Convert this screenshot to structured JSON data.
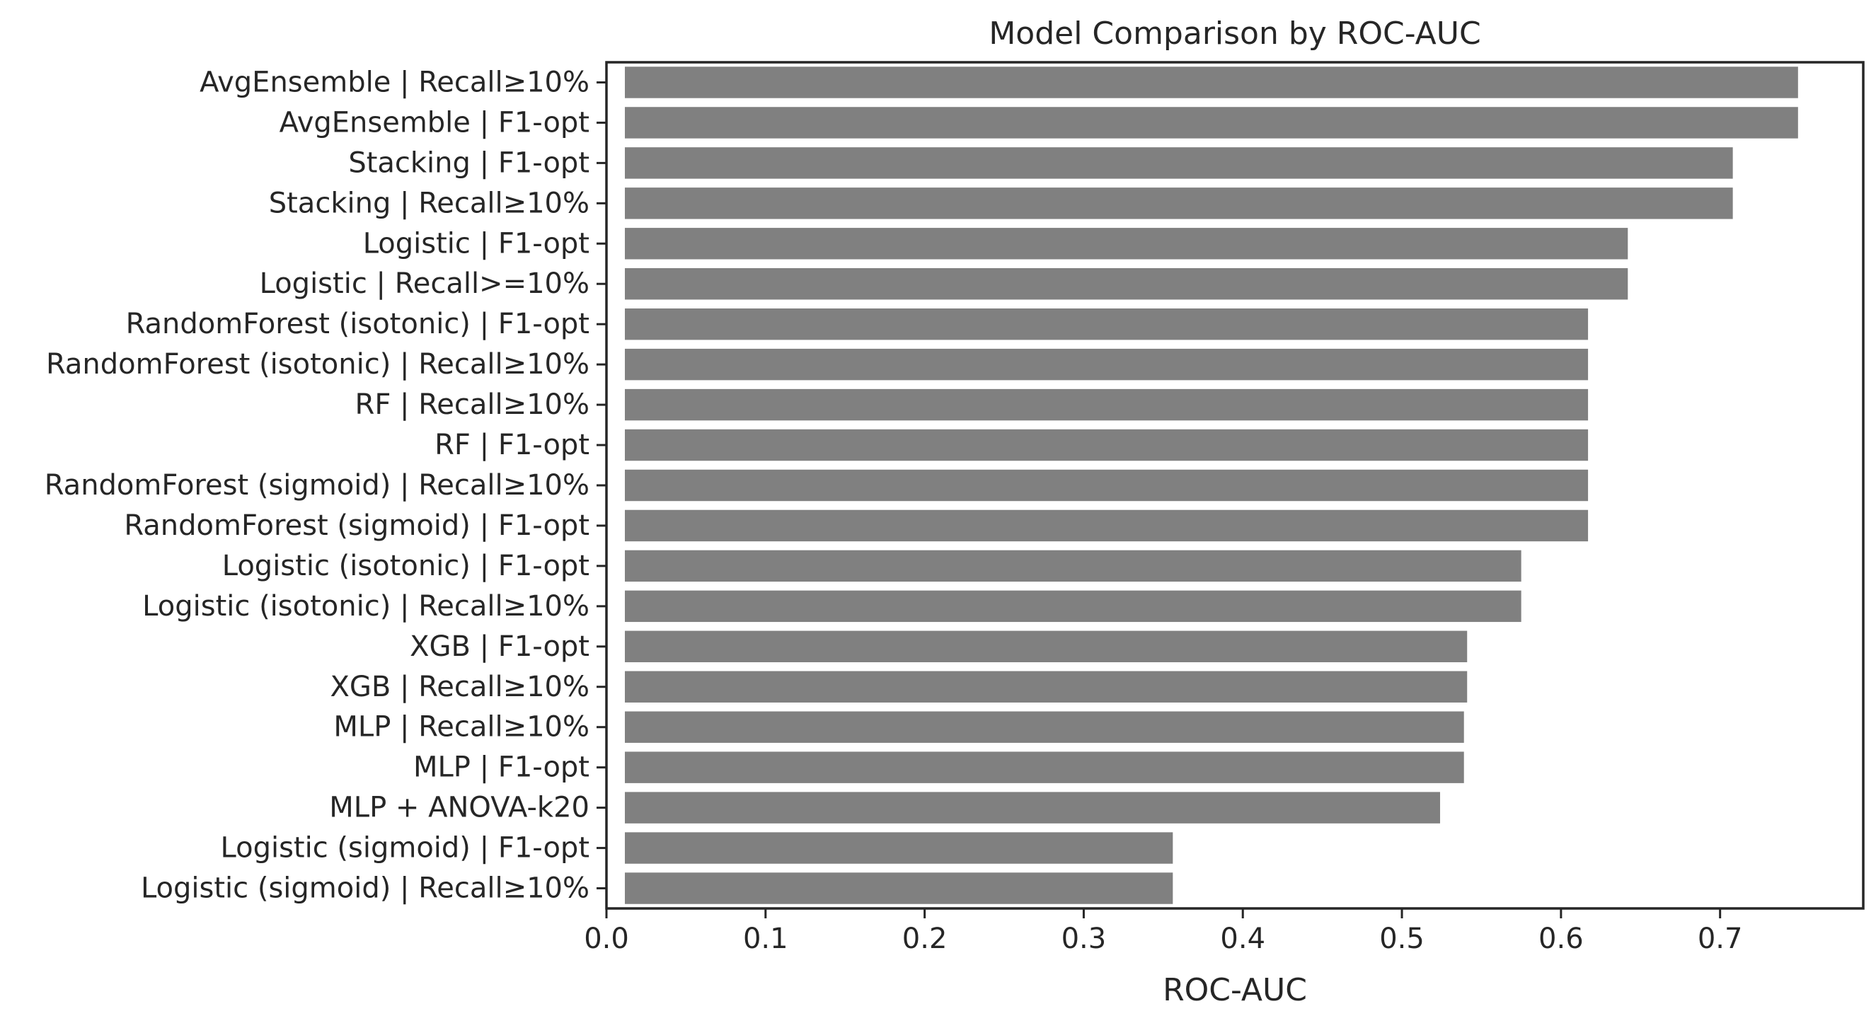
{
  "chart_data": {
    "type": "bar",
    "orientation": "horizontal",
    "title": "Model Comparison by ROC-AUC",
    "xlabel": "ROC-AUC",
    "ylabel": "",
    "xlim": [
      0,
      0.79
    ],
    "xticks": [
      "0.0",
      "0.1",
      "0.2",
      "0.3",
      "0.4",
      "0.5",
      "0.6",
      "0.7"
    ],
    "grid": false,
    "legend": "none",
    "bar_color": "#808080",
    "categories": [
      "AvgEnsemble | Recall≥10%",
      "AvgEnsemble | F1-opt",
      "Stacking | F1-opt",
      "Stacking | Recall≥10%",
      "Logistic | F1-opt",
      "Logistic | Recall>=10%",
      "RandomForest (isotonic) | F1-opt",
      "RandomForest (isotonic) | Recall≥10%",
      "RF | Recall≥10%",
      "RF | F1-opt",
      "RandomForest (sigmoid) | Recall≥10%",
      "RandomForest (sigmoid) | F1-opt",
      "Logistic (isotonic) | F1-opt",
      "Logistic (isotonic) | Recall≥10%",
      "XGB | F1-opt",
      "XGB | Recall≥10%",
      "MLP | Recall≥10%",
      "MLP | F1-opt",
      "MLP + ANOVA-k20",
      "Logistic (sigmoid) | F1-opt",
      "Logistic (sigmoid) | Recall≥10%"
    ],
    "values": [
      0.749,
      0.749,
      0.708,
      0.708,
      0.642,
      0.642,
      0.617,
      0.617,
      0.617,
      0.617,
      0.617,
      0.617,
      0.575,
      0.575,
      0.541,
      0.541,
      0.539,
      0.539,
      0.524,
      0.356,
      0.356
    ]
  }
}
